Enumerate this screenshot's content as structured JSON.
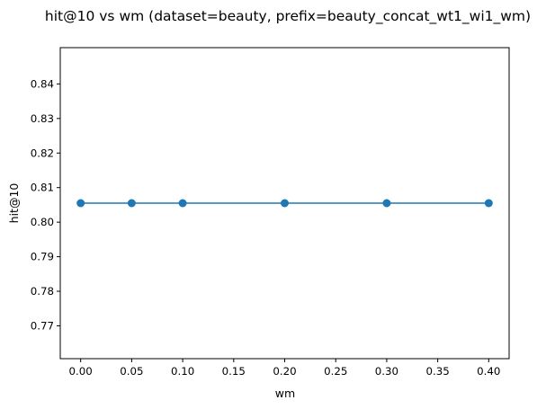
{
  "chart_data": {
    "type": "line",
    "title": "hit@10 vs wm (dataset=beauty, prefix=beauty_concat_wt1_wi1_wm)",
    "xlabel": "wm",
    "ylabel": "hit@10",
    "x": [
      0.0,
      0.05,
      0.1,
      0.2,
      0.3,
      0.4
    ],
    "series": [
      {
        "values": [
          0.8055,
          0.8055,
          0.8055,
          0.8055,
          0.8055,
          0.8055
        ]
      }
    ],
    "xlim": [
      -0.02,
      0.42
    ],
    "ylim": [
      0.7605,
      0.8505
    ],
    "xticks": [
      "0.00",
      "0.05",
      "0.10",
      "0.15",
      "0.20",
      "0.25",
      "0.30",
      "0.35",
      "0.40"
    ],
    "yticks": [
      "0.77",
      "0.78",
      "0.79",
      "0.80",
      "0.81",
      "0.82",
      "0.83",
      "0.84"
    ],
    "marker": "circle",
    "grid": false,
    "color": "#1f77b4"
  }
}
